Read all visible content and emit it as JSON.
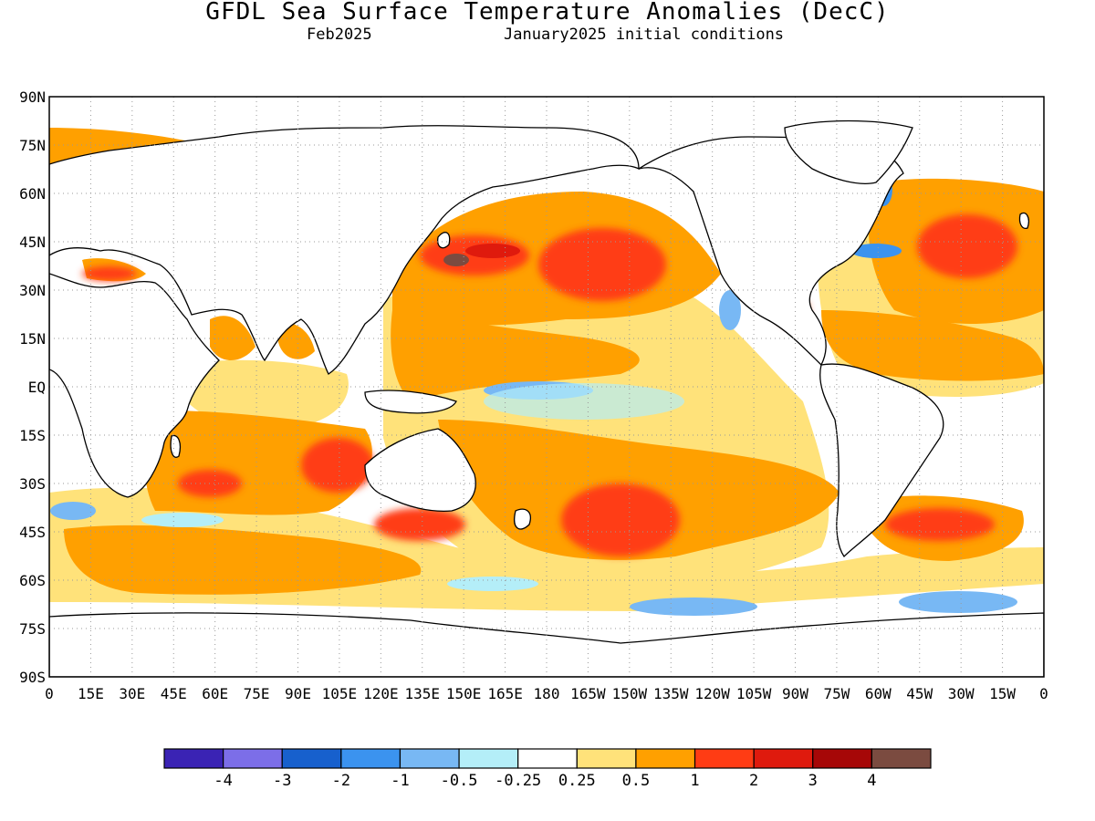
{
  "header": {
    "title": "GFDL Sea Surface Temperature Anomalies (DecC)",
    "valid_month": "Feb2025",
    "init_text": "January2025 initial conditions"
  },
  "map": {
    "lat_labels": [
      "90N",
      "75N",
      "60N",
      "45N",
      "30N",
      "15N",
      "EQ",
      "15S",
      "30S",
      "45S",
      "60S",
      "75S",
      "90S"
    ],
    "lon_labels": [
      "0",
      "15E",
      "30E",
      "45E",
      "60E",
      "75E",
      "90E",
      "105E",
      "120E",
      "135E",
      "150E",
      "165E",
      "180",
      "165W",
      "150W",
      "135W",
      "120W",
      "105W",
      "90W",
      "75W",
      "60W",
      "45W",
      "30W",
      "15W",
      "0"
    ]
  },
  "colorbar": {
    "colors": [
      "#3a23b4",
      "#7c6ee8",
      "#1760cd",
      "#3b93ef",
      "#78b8f4",
      "#b4eef8",
      "#ffffff",
      "#ffe27a",
      "#ffa000",
      "#ff3c14",
      "#df1a0d",
      "#a60707",
      "#7b4b40"
    ],
    "labels": [
      "-4",
      "-3",
      "-2",
      "-1",
      "-0.5",
      "-0.25",
      "0.25",
      "0.5",
      "1",
      "2",
      "3",
      "4"
    ]
  },
  "colors": {
    "warm_weak": "#ffe27a",
    "warm": "#ffa000",
    "warm_strong": "#ff3c14",
    "hot": "#df1a0d",
    "extreme": "#7b4b40",
    "cool_weak": "#b4eef8",
    "cool": "#78b8f4",
    "cool_strong": "#3b93ef"
  }
}
